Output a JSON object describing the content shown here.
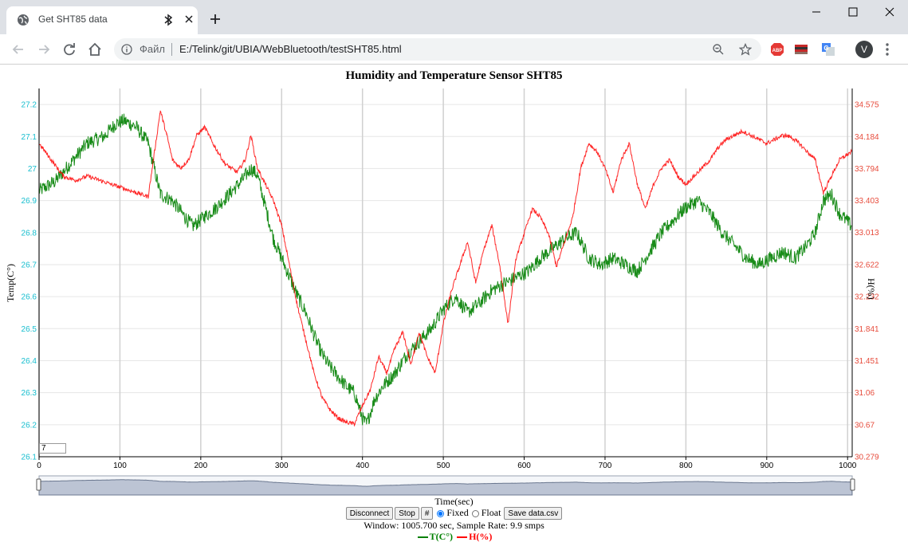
{
  "browser": {
    "tab_title": "Get SHT85 data",
    "url_scheme": "Файл",
    "url": "E:/Telink/git/UBIA/WebBluetooth/testSHT85.html",
    "avatar_letter": "V",
    "accent": "#1a73e8"
  },
  "page": {
    "title": "Humidity and Temperature Sensor SHT85",
    "roll_value": "7",
    "buttons": {
      "disconnect": "Disconnect",
      "stop": "Stop",
      "hash": "#",
      "save": "Save data.csv"
    },
    "radio": {
      "fixed": "Fixed",
      "float": "Float",
      "selected": "fixed"
    },
    "status": "Window: 1005.700 sec, Sample Rate: 9.9 smps",
    "legend": [
      {
        "label": "T(C°)",
        "color": "#008000"
      },
      {
        "label": "H(%)",
        "color": "#ff0000"
      }
    ]
  },
  "chart_data": {
    "type": "line",
    "title": "Humidity and Temperature Sensor SHT85",
    "xlabel": "Time(sec)",
    "ylabel": "Temp(C°)",
    "y2label": "H(%)",
    "xlim": [
      0,
      1005.7
    ],
    "ylim": [
      26.1,
      27.25
    ],
    "y2lim": [
      30.279,
      34.77
    ],
    "x_ticks": [
      0,
      100,
      200,
      300,
      400,
      500,
      600,
      700,
      800,
      900,
      1000
    ],
    "y_ticks": [
      26.1,
      26.2,
      26.3,
      26.4,
      26.5,
      26.6,
      26.7,
      26.8,
      26.9,
      27,
      27.1,
      27.2
    ],
    "y_tick_labels": [
      "26.1",
      "26.2",
      "26.3",
      "26.4",
      "26.5",
      "26.6",
      "26.7",
      "26.8",
      "26.9",
      "27",
      "27.1",
      "27.2"
    ],
    "y2_ticks": [
      30.279,
      30.67,
      31.06,
      31.451,
      31.841,
      32.232,
      32.622,
      33.013,
      33.403,
      33.794,
      34.184,
      34.575
    ],
    "y2_tick_labels": [
      "30.279",
      "30.67",
      "31.06",
      "31.451",
      "31.841",
      "32.232",
      "32.622",
      "33.013",
      "33.403",
      "33.794",
      "34.184",
      "34.575"
    ],
    "grid": true,
    "y_tick_color": "#17becf",
    "y2_tick_color": "#e74c3c",
    "series": [
      {
        "name": "T(C°)",
        "axis": "left",
        "color": "#008000",
        "x": [
          0,
          20,
          40,
          60,
          80,
          95,
          105,
          120,
          135,
          150,
          165,
          180,
          190,
          205,
          220,
          235,
          250,
          262,
          270,
          280,
          290,
          300,
          310,
          320,
          330,
          340,
          350,
          360,
          370,
          380,
          390,
          400,
          405,
          415,
          425,
          440,
          455,
          470,
          485,
          500,
          515,
          530,
          545,
          560,
          575,
          590,
          605,
          620,
          635,
          650,
          665,
          680,
          695,
          710,
          725,
          740,
          755,
          770,
          785,
          800,
          815,
          830,
          845,
          860,
          875,
          890,
          905,
          920,
          935,
          950,
          960,
          970,
          980,
          990,
          1005
        ],
        "y": [
          26.93,
          26.96,
          27.02,
          27.08,
          27.1,
          27.14,
          27.15,
          27.13,
          27.08,
          26.92,
          26.9,
          26.85,
          26.82,
          26.85,
          26.88,
          26.92,
          26.96,
          27.0,
          26.98,
          26.88,
          26.78,
          26.72,
          26.66,
          26.6,
          26.55,
          26.48,
          26.42,
          26.38,
          26.35,
          26.32,
          26.3,
          26.22,
          26.2,
          26.28,
          26.32,
          26.36,
          26.42,
          26.46,
          26.5,
          26.56,
          26.6,
          26.55,
          26.58,
          26.62,
          26.64,
          26.66,
          26.68,
          26.72,
          26.75,
          26.78,
          26.8,
          26.72,
          26.7,
          26.72,
          26.7,
          26.68,
          26.74,
          26.8,
          26.84,
          26.88,
          26.9,
          26.86,
          26.8,
          26.76,
          26.72,
          26.7,
          26.72,
          26.74,
          26.72,
          26.76,
          26.8,
          26.9,
          26.92,
          26.86,
          26.82
        ]
      },
      {
        "name": "H(%)",
        "axis": "right",
        "color": "#ff0000",
        "x": [
          0,
          15,
          30,
          45,
          60,
          75,
          90,
          105,
          120,
          135,
          150,
          158,
          165,
          175,
          185,
          195,
          205,
          215,
          230,
          245,
          255,
          262,
          270,
          280,
          290,
          300,
          310,
          320,
          330,
          340,
          350,
          360,
          370,
          380,
          390,
          400,
          410,
          420,
          430,
          440,
          450,
          460,
          470,
          480,
          490,
          500,
          510,
          520,
          530,
          540,
          550,
          560,
          570,
          580,
          590,
          600,
          610,
          620,
          630,
          640,
          650,
          660,
          670,
          680,
          690,
          700,
          710,
          720,
          730,
          740,
          750,
          760,
          770,
          780,
          790,
          800,
          810,
          820,
          830,
          840,
          850,
          860,
          870,
          880,
          890,
          900,
          910,
          920,
          930,
          940,
          950,
          960,
          970,
          980,
          990,
          1005
        ],
        "y": [
          34.1,
          33.9,
          33.7,
          33.65,
          33.7,
          33.65,
          33.6,
          33.55,
          33.5,
          33.45,
          34.5,
          34.2,
          33.9,
          33.8,
          33.9,
          34.2,
          34.3,
          34.1,
          33.85,
          33.75,
          33.9,
          34.2,
          33.8,
          33.6,
          33.4,
          33.1,
          32.6,
          32.1,
          31.7,
          31.3,
          31.0,
          30.85,
          30.75,
          30.7,
          30.68,
          30.9,
          31.1,
          31.5,
          31.3,
          31.6,
          31.8,
          31.4,
          31.8,
          31.5,
          31.3,
          31.9,
          32.3,
          32.6,
          32.9,
          32.4,
          32.8,
          33.1,
          32.6,
          31.9,
          32.7,
          33.0,
          33.3,
          33.2,
          33.0,
          32.6,
          32.9,
          33.2,
          33.8,
          34.1,
          34.0,
          33.8,
          33.5,
          33.9,
          34.1,
          33.6,
          33.3,
          33.6,
          33.8,
          33.9,
          33.7,
          33.6,
          33.7,
          33.8,
          33.9,
          34.05,
          34.15,
          34.2,
          34.25,
          34.2,
          34.15,
          34.1,
          34.15,
          34.2,
          34.18,
          34.1,
          34.0,
          33.9,
          33.5,
          33.7,
          33.9,
          34.0
        ]
      }
    ]
  }
}
